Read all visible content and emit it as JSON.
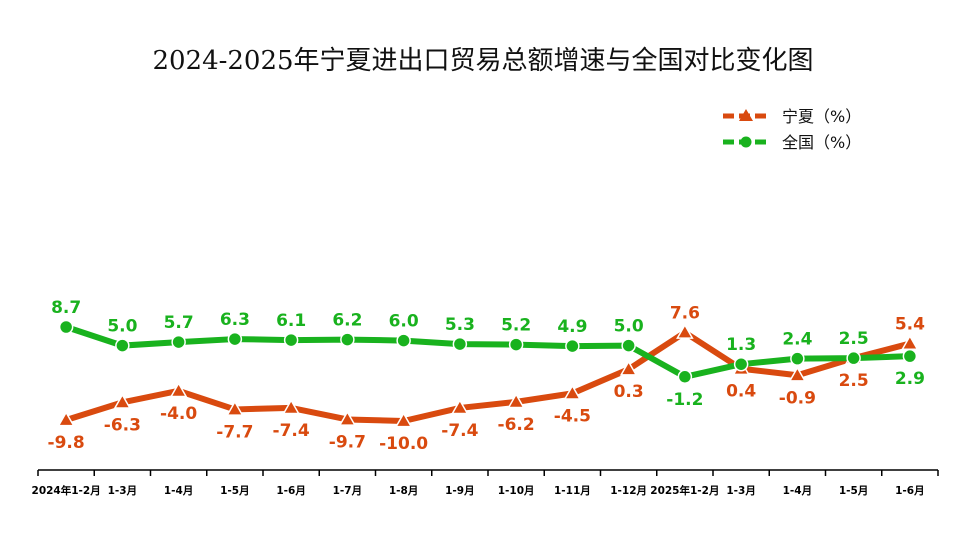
{
  "title": "2024-2025年宁夏进出口贸易总额增速与全国对比变化图",
  "chart_data": {
    "type": "line",
    "title": "2024-2025年宁夏进出口贸易总额增速与全国对比变化图",
    "categories": [
      "2024年1-2月",
      "1-3月",
      "1-4月",
      "1-5月",
      "1-6月",
      "1-7月",
      "1-8月",
      "1-9月",
      "1-10月",
      "1-11月",
      "1-12月",
      "2025年1-2月",
      "1-3月",
      "1-4月",
      "1-5月",
      "1-6月"
    ],
    "series": [
      {
        "name": "宁夏（%）",
        "color": "#d94a0f",
        "marker": "triangle",
        "values": [
          -9.8,
          -6.3,
          -4.0,
          -7.7,
          -7.4,
          -9.7,
          -10.0,
          -7.4,
          -6.2,
          -4.5,
          0.3,
          7.6,
          0.4,
          -0.9,
          2.5,
          5.4
        ]
      },
      {
        "name": "全国（%）",
        "color": "#19b21e",
        "marker": "circle",
        "values": [
          8.7,
          5.0,
          5.7,
          6.3,
          6.1,
          6.2,
          6.0,
          5.3,
          5.2,
          4.9,
          5.0,
          -1.2,
          1.3,
          2.4,
          2.5,
          2.9
        ]
      }
    ],
    "legend_position": "top-right",
    "grid": false
  }
}
